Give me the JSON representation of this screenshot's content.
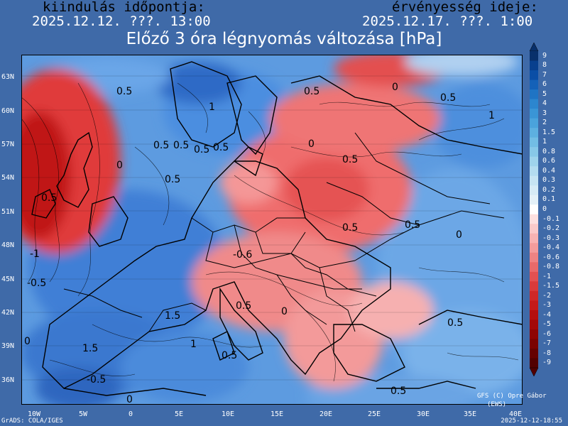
{
  "header": {
    "left_label": "kiindulás időpontja:",
    "left_value": "2025.12.12. ???. 13:00",
    "right_label": "érvényesség ideje:",
    "right_value": "2025.12.17. ???. 1:00",
    "title": "Előző 3 óra légnyomás változása [hPa]"
  },
  "axes": {
    "lat_labels": [
      "63N",
      "60N",
      "57N",
      "54N",
      "51N",
      "48N",
      "45N",
      "42N",
      "39N",
      "36N"
    ],
    "lon_labels": [
      "10W",
      "5W",
      "0",
      "5E",
      "10E",
      "15E",
      "20E",
      "25E",
      "30E",
      "35E",
      "40E"
    ]
  },
  "legend": {
    "labels": [
      "9",
      "8",
      "7",
      "6",
      "5",
      "4",
      "3",
      "2",
      "1.5",
      "1",
      "0.8",
      "0.6",
      "0.4",
      "0.3",
      "0.2",
      "0.1",
      "0",
      "-0.1",
      "-0.2",
      "-0.3",
      "-0.4",
      "-0.6",
      "-0.8",
      "-1",
      "-1.5",
      "-2",
      "-3",
      "-4",
      "-5",
      "-6",
      "-7",
      "-8",
      "-9"
    ],
    "colors": [
      "#08306b",
      "#08408e",
      "#0a4ea6",
      "#1461b8",
      "#1f74c4",
      "#2c86cf",
      "#3a95d6",
      "#4aa3dc",
      "#5db0e0",
      "#72bde4",
      "#87c8e8",
      "#9ed3ec",
      "#b3dcf0",
      "#c6e4f3",
      "#d6ebf6",
      "#e4f1f8",
      "#ffffff",
      "#fde0e0",
      "#fbcaca",
      "#f8b3b3",
      "#f49c9c",
      "#ef8383",
      "#e96a6a",
      "#e25151",
      "#d93b3b",
      "#cf2828",
      "#c41a1a",
      "#b50f0f",
      "#a30808",
      "#8f0404",
      "#7a0202",
      "#650101",
      "#520000"
    ]
  },
  "contour_labels": [
    "0.5",
    "0.5",
    "1",
    "0.5",
    "0.5",
    "0.5",
    "0",
    "0.5",
    "0",
    "1",
    "0.5",
    "0",
    "-1",
    "-0.5",
    "0.5",
    "0.5",
    "0.5",
    "-0.6",
    "0.5",
    "1.5",
    "1",
    "1.5",
    "0.5",
    "0.5",
    "0",
    "0.5",
    "0",
    "0.5",
    "0.5",
    "0",
    "-0.5",
    "0"
  ],
  "credits": {
    "left": "GrADS: COLA/IGES",
    "right": "2025-12-12-18:55",
    "author": "GFS (C) Opre Gábor",
    "author2": "(EWS)"
  }
}
